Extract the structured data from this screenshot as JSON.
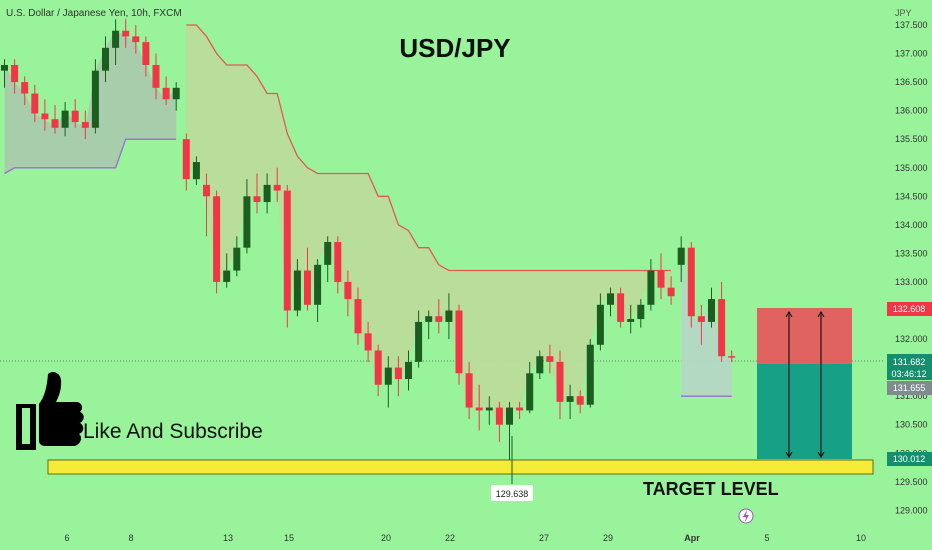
{
  "header": {
    "symbol_line": "U.S. Dollar / Japanese Yen, 10h, FXCM",
    "title": "USD/JPY",
    "currency": "JPY"
  },
  "annotations": {
    "like_subscribe": "Like And Subscribe",
    "target_level": "TARGET LEVEL",
    "low_marker": "129.638"
  },
  "price_axis": {
    "ticks": [
      "137.500",
      "137.000",
      "136.500",
      "136.000",
      "135.500",
      "135.000",
      "134.500",
      "134.000",
      "133.500",
      "133.000",
      "132.500",
      "132.000",
      "131.500",
      "131.000",
      "130.500",
      "130.000",
      "129.500",
      "129.000"
    ],
    "badges": {
      "stop": "132.608",
      "current": "131.682",
      "countdown": "03:46:12",
      "entry": "131.655",
      "target": "130.012"
    }
  },
  "time_axis": {
    "labels": [
      "6",
      "8",
      "13",
      "15",
      "20",
      "22",
      "27",
      "29",
      "Apr",
      "5",
      "10"
    ]
  },
  "colors": {
    "background": "#98f39b",
    "bull": "#1b5e20",
    "bear": "#f23645",
    "trail_line": "#e35757",
    "support_line": "#9c6bd6",
    "target_band": "#f5ec3a",
    "risk_zone": "#e8535a",
    "reward_zone": "#16a085",
    "badge_red": "#f23645",
    "badge_teal": "#138f6e",
    "badge_gray": "#7f8c8d"
  },
  "chart_data": {
    "type": "candlestick",
    "title": "USD/JPY",
    "ylabel": "JPY",
    "ylim": [
      128.9,
      137.6
    ],
    "target_level": 130.012,
    "stop_level": 132.608,
    "entry_level": 131.655,
    "current_price": 131.682,
    "low_marker": 129.638,
    "candles": [
      {
        "o": 136.7,
        "h": 136.9,
        "l": 136.4,
        "c": 136.8
      },
      {
        "o": 136.8,
        "h": 136.9,
        "l": 136.3,
        "c": 136.5
      },
      {
        "o": 136.5,
        "h": 136.6,
        "l": 136.1,
        "c": 136.3
      },
      {
        "o": 136.3,
        "h": 136.45,
        "l": 135.8,
        "c": 135.95
      },
      {
        "o": 135.95,
        "h": 136.2,
        "l": 135.65,
        "c": 135.85
      },
      {
        "o": 135.85,
        "h": 136.1,
        "l": 135.6,
        "c": 135.7
      },
      {
        "o": 135.7,
        "h": 136.15,
        "l": 135.55,
        "c": 136.0
      },
      {
        "o": 136.0,
        "h": 136.2,
        "l": 135.7,
        "c": 135.8
      },
      {
        "o": 135.8,
        "h": 136.0,
        "l": 135.5,
        "c": 135.7
      },
      {
        "o": 135.7,
        "h": 136.9,
        "l": 135.6,
        "c": 136.7
      },
      {
        "o": 136.7,
        "h": 137.3,
        "l": 136.5,
        "c": 137.1
      },
      {
        "o": 137.1,
        "h": 137.6,
        "l": 136.8,
        "c": 137.4
      },
      {
        "o": 137.4,
        "h": 137.6,
        "l": 137.1,
        "c": 137.3
      },
      {
        "o": 137.3,
        "h": 137.5,
        "l": 137.0,
        "c": 137.2
      },
      {
        "o": 137.2,
        "h": 137.3,
        "l": 136.6,
        "c": 136.8
      },
      {
        "o": 136.8,
        "h": 137.0,
        "l": 136.2,
        "c": 136.4
      },
      {
        "o": 136.4,
        "h": 136.6,
        "l": 136.1,
        "c": 136.2
      },
      {
        "o": 136.2,
        "h": 136.5,
        "l": 136.0,
        "c": 136.4
      },
      {
        "o": 135.5,
        "h": 135.6,
        "l": 134.6,
        "c": 134.8
      },
      {
        "o": 134.8,
        "h": 135.2,
        "l": 134.7,
        "c": 135.1
      },
      {
        "o": 134.7,
        "h": 134.9,
        "l": 133.8,
        "c": 134.5
      },
      {
        "o": 134.5,
        "h": 134.6,
        "l": 132.8,
        "c": 133.0
      },
      {
        "o": 133.0,
        "h": 133.5,
        "l": 132.9,
        "c": 133.2
      },
      {
        "o": 133.2,
        "h": 133.8,
        "l": 133.1,
        "c": 133.6
      },
      {
        "o": 133.6,
        "h": 134.8,
        "l": 133.5,
        "c": 134.5
      },
      {
        "o": 134.5,
        "h": 134.9,
        "l": 134.2,
        "c": 134.4
      },
      {
        "o": 134.4,
        "h": 134.9,
        "l": 134.2,
        "c": 134.7
      },
      {
        "o": 134.7,
        "h": 135.0,
        "l": 134.4,
        "c": 134.6
      },
      {
        "o": 134.6,
        "h": 134.7,
        "l": 132.2,
        "c": 132.5
      },
      {
        "o": 132.5,
        "h": 133.4,
        "l": 132.4,
        "c": 133.2
      },
      {
        "o": 133.2,
        "h": 133.6,
        "l": 132.5,
        "c": 132.6
      },
      {
        "o": 132.6,
        "h": 133.4,
        "l": 132.3,
        "c": 133.3
      },
      {
        "o": 133.3,
        "h": 133.8,
        "l": 133.0,
        "c": 133.7
      },
      {
        "o": 133.7,
        "h": 133.8,
        "l": 132.8,
        "c": 133.0
      },
      {
        "o": 133.0,
        "h": 133.2,
        "l": 132.4,
        "c": 132.7
      },
      {
        "o": 132.7,
        "h": 132.9,
        "l": 131.9,
        "c": 132.1
      },
      {
        "o": 132.1,
        "h": 132.3,
        "l": 131.6,
        "c": 131.8
      },
      {
        "o": 131.8,
        "h": 131.9,
        "l": 131.0,
        "c": 131.2
      },
      {
        "o": 131.2,
        "h": 131.7,
        "l": 130.8,
        "c": 131.5
      },
      {
        "o": 131.5,
        "h": 131.7,
        "l": 131.0,
        "c": 131.3
      },
      {
        "o": 131.3,
        "h": 131.8,
        "l": 131.1,
        "c": 131.6
      },
      {
        "o": 131.6,
        "h": 132.5,
        "l": 131.5,
        "c": 132.3
      },
      {
        "o": 132.3,
        "h": 132.5,
        "l": 132.0,
        "c": 132.4
      },
      {
        "o": 132.4,
        "h": 132.7,
        "l": 132.1,
        "c": 132.3
      },
      {
        "o": 132.3,
        "h": 132.8,
        "l": 132.0,
        "c": 132.5
      },
      {
        "o": 132.5,
        "h": 132.6,
        "l": 131.2,
        "c": 131.4
      },
      {
        "o": 131.4,
        "h": 131.6,
        "l": 130.6,
        "c": 130.8
      },
      {
        "o": 130.8,
        "h": 131.2,
        "l": 130.4,
        "c": 130.75
      },
      {
        "o": 130.75,
        "h": 131.0,
        "l": 130.5,
        "c": 130.8
      },
      {
        "o": 130.8,
        "h": 130.9,
        "l": 130.2,
        "c": 130.5
      },
      {
        "o": 130.5,
        "h": 130.9,
        "l": 129.64,
        "c": 130.8
      },
      {
        "o": 130.8,
        "h": 130.9,
        "l": 130.6,
        "c": 130.75
      },
      {
        "o": 130.75,
        "h": 131.6,
        "l": 130.7,
        "c": 131.4
      },
      {
        "o": 131.4,
        "h": 131.8,
        "l": 131.3,
        "c": 131.7
      },
      {
        "o": 131.7,
        "h": 131.9,
        "l": 131.4,
        "c": 131.6
      },
      {
        "o": 131.6,
        "h": 131.8,
        "l": 130.6,
        "c": 130.9
      },
      {
        "o": 130.9,
        "h": 131.2,
        "l": 130.6,
        "c": 131.0
      },
      {
        "o": 131.0,
        "h": 131.1,
        "l": 130.7,
        "c": 130.85
      },
      {
        "o": 130.85,
        "h": 132.0,
        "l": 130.8,
        "c": 131.9
      },
      {
        "o": 131.9,
        "h": 132.8,
        "l": 131.8,
        "c": 132.6
      },
      {
        "o": 132.6,
        "h": 132.9,
        "l": 132.4,
        "c": 132.8
      },
      {
        "o": 132.8,
        "h": 132.9,
        "l": 132.2,
        "c": 132.3
      },
      {
        "o": 132.3,
        "h": 132.6,
        "l": 132.1,
        "c": 132.35
      },
      {
        "o": 132.35,
        "h": 132.7,
        "l": 132.2,
        "c": 132.6
      },
      {
        "o": 132.6,
        "h": 133.4,
        "l": 132.5,
        "c": 133.2
      },
      {
        "o": 133.2,
        "h": 133.5,
        "l": 132.7,
        "c": 132.9
      },
      {
        "o": 132.9,
        "h": 133.1,
        "l": 132.6,
        "c": 132.75
      },
      {
        "o": 133.3,
        "h": 133.8,
        "l": 133.0,
        "c": 133.6
      },
      {
        "o": 133.6,
        "h": 133.7,
        "l": 132.2,
        "c": 132.4
      },
      {
        "o": 132.4,
        "h": 132.6,
        "l": 131.9,
        "c": 132.3
      },
      {
        "o": 132.3,
        "h": 132.9,
        "l": 132.2,
        "c": 132.7
      },
      {
        "o": 132.7,
        "h": 133.0,
        "l": 131.6,
        "c": 131.7
      },
      {
        "o": 131.7,
        "h": 131.8,
        "l": 131.6,
        "c": 131.68
      }
    ],
    "trail_upper": [
      137.5,
      137.5,
      137.3,
      137.0,
      136.8,
      136.8,
      136.8,
      136.6,
      136.3,
      136.3,
      135.6,
      135.2,
      135.0,
      134.9,
      134.9,
      134.9,
      134.9,
      134.9,
      134.9,
      134.5,
      134.5,
      134.0,
      133.9,
      133.6,
      133.6,
      133.3,
      133.2,
      133.2,
      133.2,
      133.2,
      133.2,
      133.2,
      133.2,
      133.2,
      133.2,
      133.2,
      133.2,
      133.2,
      133.2,
      133.2,
      133.2,
      133.2,
      133.2,
      133.2,
      133.2,
      133.2,
      133.2,
      133.2,
      133.2
    ],
    "trail_lower_early": [
      134.9,
      135.0,
      135.0,
      135.0,
      135.0,
      135.0,
      135.0,
      135.0,
      135.0,
      135.0,
      135.0,
      135.0,
      135.5,
      135.5,
      135.5,
      135.5,
      135.5,
      135.5
    ],
    "trail_lower_late": [
      131.0,
      131.0,
      131.0,
      131.0,
      131.0,
      131.0
    ]
  }
}
